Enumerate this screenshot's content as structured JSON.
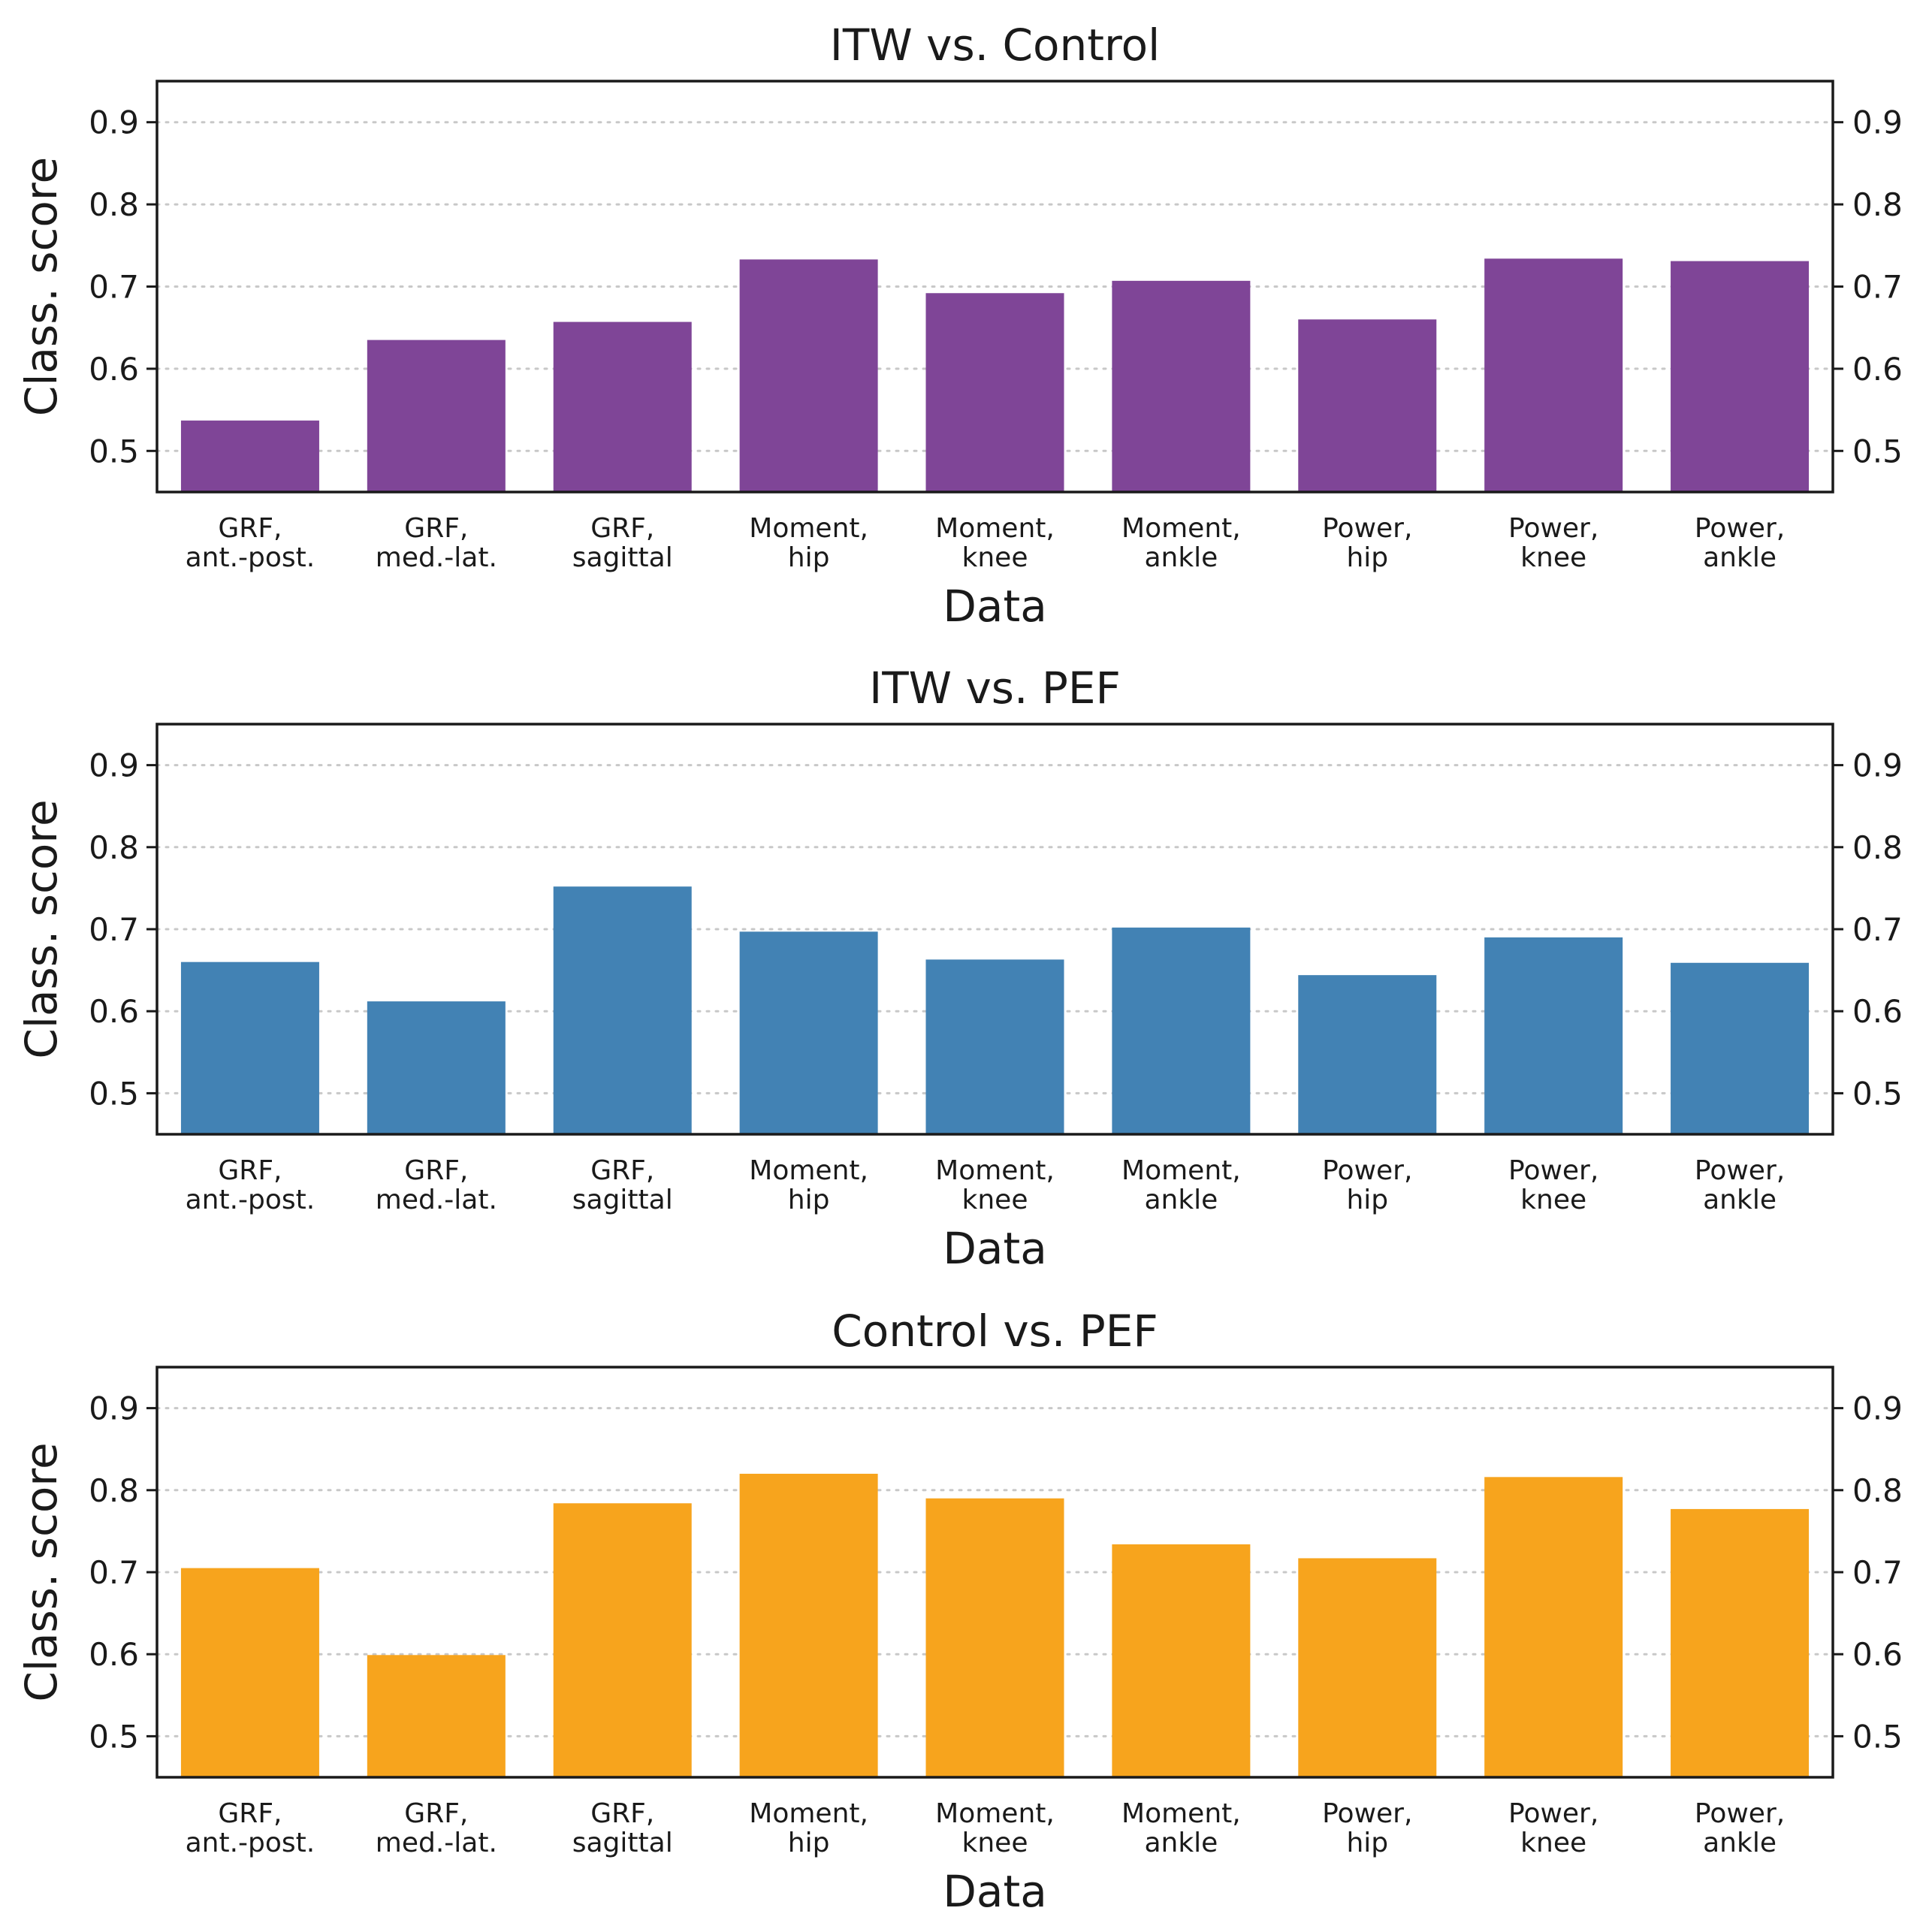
{
  "chart_data": [
    {
      "type": "bar",
      "title": "ITW vs. Control",
      "xlabel": "Data",
      "ylabel": "Class. score",
      "ylim": [
        0.45,
        0.95
      ],
      "yticks": [
        "0.5",
        "0.6",
        "0.7",
        "0.8",
        "0.9"
      ],
      "grid": "horizontal dotted",
      "color": "#7f4597",
      "categories": [
        [
          "GRF,",
          "ant.-post."
        ],
        [
          "GRF,",
          "med.-lat."
        ],
        [
          "GRF,",
          "sagittal"
        ],
        [
          "Moment,",
          "hip"
        ],
        [
          "Moment,",
          "knee"
        ],
        [
          "Moment,",
          "ankle"
        ],
        [
          "Power,",
          "hip"
        ],
        [
          "Power,",
          "knee"
        ],
        [
          "Power,",
          "ankle"
        ]
      ],
      "values": [
        0.537,
        0.635,
        0.657,
        0.733,
        0.692,
        0.707,
        0.66,
        0.734,
        0.731
      ]
    },
    {
      "type": "bar",
      "title": "ITW vs. PEF",
      "xlabel": "Data",
      "ylabel": "Class. score",
      "ylim": [
        0.45,
        0.95
      ],
      "yticks": [
        "0.5",
        "0.6",
        "0.7",
        "0.8",
        "0.9"
      ],
      "grid": "horizontal dotted",
      "color": "#4282b4",
      "categories": [
        [
          "GRF,",
          "ant.-post."
        ],
        [
          "GRF,",
          "med.-lat."
        ],
        [
          "GRF,",
          "sagittal"
        ],
        [
          "Moment,",
          "hip"
        ],
        [
          "Moment,",
          "knee"
        ],
        [
          "Moment,",
          "ankle"
        ],
        [
          "Power,",
          "hip"
        ],
        [
          "Power,",
          "knee"
        ],
        [
          "Power,",
          "ankle"
        ]
      ],
      "values": [
        0.66,
        0.612,
        0.752,
        0.697,
        0.663,
        0.702,
        0.644,
        0.69,
        0.659
      ]
    },
    {
      "type": "bar",
      "title": "Control vs. PEF",
      "xlabel": "Data",
      "ylabel": "Class. score",
      "ylim": [
        0.45,
        0.95
      ],
      "yticks": [
        "0.5",
        "0.6",
        "0.7",
        "0.8",
        "0.9"
      ],
      "grid": "horizontal dotted",
      "color": "#f7a41d",
      "categories": [
        [
          "GRF,",
          "ant.-post."
        ],
        [
          "GRF,",
          "med.-lat."
        ],
        [
          "GRF,",
          "sagittal"
        ],
        [
          "Moment,",
          "hip"
        ],
        [
          "Moment,",
          "knee"
        ],
        [
          "Moment,",
          "ankle"
        ],
        [
          "Power,",
          "hip"
        ],
        [
          "Power,",
          "knee"
        ],
        [
          "Power,",
          "ankle"
        ]
      ],
      "values": [
        0.705,
        0.599,
        0.784,
        0.82,
        0.79,
        0.734,
        0.717,
        0.816,
        0.777
      ]
    }
  ]
}
